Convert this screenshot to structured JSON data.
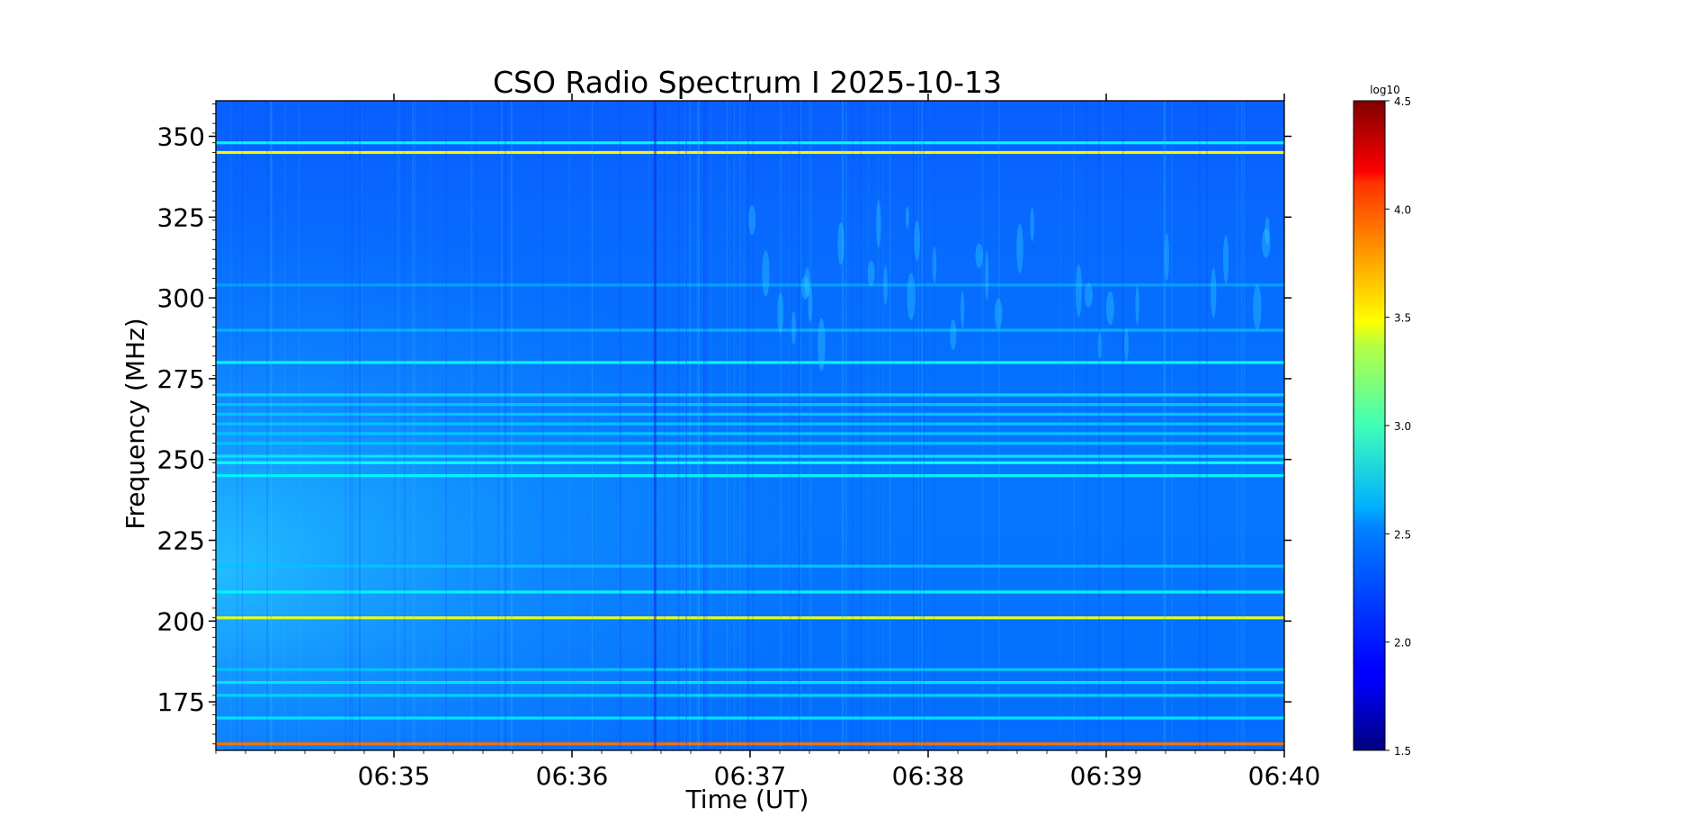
{
  "chart_data": {
    "type": "heatmap",
    "title": "CSO Radio Spectrum I 2025-10-13",
    "xlabel": "Time (UT)",
    "ylabel": "Frequency (MHz)",
    "x_ticks": [
      "06:35",
      "06:36",
      "06:37",
      "06:38",
      "06:39",
      "06:40"
    ],
    "x_range": [
      "06:34:00",
      "06:40:00"
    ],
    "y_ticks": [
      175,
      200,
      225,
      250,
      275,
      300,
      325,
      350
    ],
    "y_range": [
      160,
      361
    ],
    "colorbar": {
      "label": "log10",
      "range": [
        1.5,
        4.5
      ],
      "ticks": [
        "1.5",
        "2.0",
        "2.5",
        "3.0",
        "3.5",
        "4.0",
        "4.5"
      ],
      "colormap": "jet"
    },
    "background_level": 2.2,
    "rfi_lines_mhz": [
      {
        "freq": 162,
        "level": 3.8
      },
      {
        "freq": 170,
        "level": 2.55
      },
      {
        "freq": 177,
        "level": 2.5
      },
      {
        "freq": 181,
        "level": 2.55
      },
      {
        "freq": 185,
        "level": 2.45
      },
      {
        "freq": 201,
        "level": 3.3
      },
      {
        "freq": 209,
        "level": 2.6
      },
      {
        "freq": 217,
        "level": 2.45
      },
      {
        "freq": 245,
        "level": 2.6
      },
      {
        "freq": 249,
        "level": 2.65
      },
      {
        "freq": 251,
        "level": 2.55
      },
      {
        "freq": 255,
        "level": 2.45
      },
      {
        "freq": 258,
        "level": 2.45
      },
      {
        "freq": 261,
        "level": 2.45
      },
      {
        "freq": 264,
        "level": 2.45
      },
      {
        "freq": 267,
        "level": 2.45
      },
      {
        "freq": 270,
        "level": 2.5
      },
      {
        "freq": 280,
        "level": 2.6
      },
      {
        "freq": 290,
        "level": 2.4
      },
      {
        "freq": 304,
        "level": 2.35
      },
      {
        "freq": 345,
        "level": 3.4
      },
      {
        "freq": 348,
        "level": 2.6
      }
    ],
    "grid": false
  }
}
